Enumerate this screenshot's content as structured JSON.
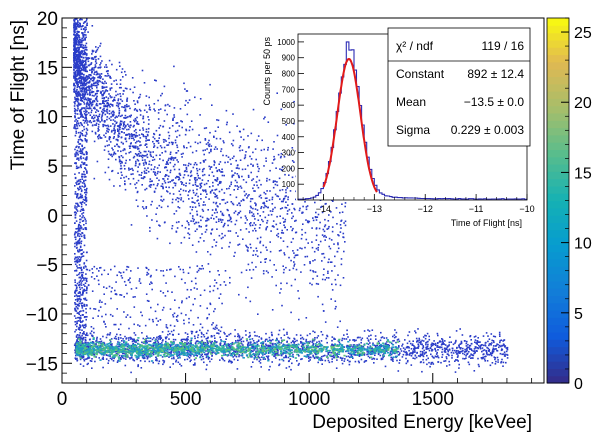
{
  "chart_data": [
    {
      "type": "heatmap",
      "xlabel": "Deposited Energy [keVee]",
      "ylabel": "Time of Flight [ns]",
      "xlim": [
        0,
        1950
      ],
      "ylim": [
        -17,
        20
      ],
      "x_ticks": [
        "0",
        "500",
        "1000",
        "1500"
      ],
      "y_ticks": [
        "20",
        "15",
        "10",
        "5",
        "0",
        "−5",
        "−10",
        "−15"
      ],
      "colorbar": {
        "range": [
          0,
          26
        ],
        "ticks": [
          "0",
          "5",
          "10",
          "15",
          "20",
          "25"
        ]
      },
      "point_color": "#2a3cc8",
      "band_colors": [
        "#1f9bc4",
        "#35b79b",
        "#5cc47a"
      ],
      "features": {
        "gamma_band_tof": -13.5,
        "gamma_band_energy_range": [
          50,
          1800
        ],
        "neutron_region": "broad scatter from about 20 ns at low energy down toward −5 ns near 1000 keVee"
      },
      "grid": false
    },
    {
      "type": "bar",
      "subtype": "step-histogram-with-gaussian-fit",
      "xlabel": "Time of Flight [ns]",
      "ylabel": "Counts per 50 ps",
      "xlim": [
        -14.5,
        -10
      ],
      "ylim": [
        0,
        1050
      ],
      "x_ticks": [
        "−14",
        "−13",
        "−12",
        "−11",
        "−10"
      ],
      "y_ticks": [
        "100",
        "200",
        "300",
        "400",
        "500",
        "600",
        "700",
        "800",
        "900",
        "1000"
      ],
      "histogram_color": "#2a2ab5",
      "fit_color": "#e11a1a",
      "fit": {
        "function": "gaus",
        "constant": 892,
        "mean": -13.5,
        "sigma": 0.229,
        "range": [
          -14,
          -12.95
        ]
      },
      "stats": [
        {
          "name": "χ² / ndf",
          "value": "119 / 16"
        },
        {
          "name": "Constant",
          "value": "892 ± 12.4"
        },
        {
          "name": "Mean",
          "value": "−13.5 ± 0.0"
        },
        {
          "name": "Sigma",
          "value": "0.229 ± 0.003"
        }
      ]
    }
  ]
}
